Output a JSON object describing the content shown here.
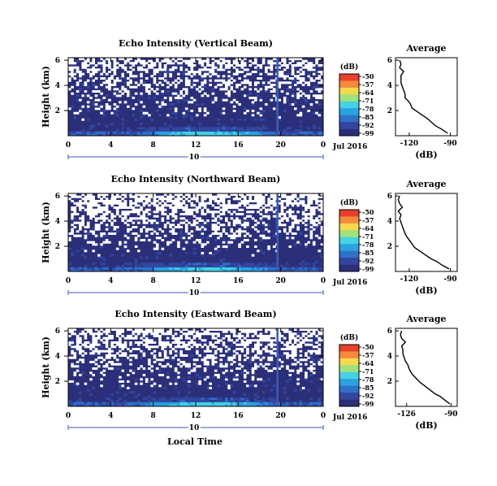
{
  "figure": {
    "xlabel": "Local Time",
    "date_label": "Jul 2016",
    "day_label": "10"
  },
  "chart_data": [
    {
      "type": "heatmap",
      "title": "Echo Intensity (Vertical Beam)",
      "ylabel": "Height (km)",
      "xlim": [
        0,
        24
      ],
      "ylim": [
        0,
        6.2
      ],
      "xticks": [
        "0",
        "4",
        "8",
        "12",
        "16",
        "20",
        "0"
      ],
      "yticks": [
        "2",
        "4",
        "6"
      ],
      "colorbar": {
        "unit": "(dB)",
        "ticks": [
          "-50",
          "-57",
          "-64",
          "-71",
          "-78",
          "-85",
          "-92",
          "-99"
        ]
      },
      "gap_density": 0.42,
      "spike_hour": 19.6,
      "profile": {
        "title": "Average",
        "xlabel": "(dB)",
        "xticks": [
          "-120",
          "-90"
        ],
        "xlim": [
          -130,
          -85
        ],
        "heights": [
          0.2,
          0.5,
          0.8,
          1.0,
          1.3,
          1.6,
          1.9,
          2.2,
          2.5,
          2.8,
          3.0,
          3.3,
          3.6,
          3.9,
          4.2,
          4.5,
          4.8,
          5.1,
          5.4,
          5.7,
          6.0
        ],
        "values": [
          -92,
          -96,
          -101,
          -103,
          -106,
          -110,
          -114,
          -118,
          -119,
          -121,
          -123,
          -123,
          -124,
          -125,
          -126,
          -126,
          -126,
          -124,
          -127,
          -126,
          -127
        ]
      }
    },
    {
      "type": "heatmap",
      "title": "Echo Intensity (Northward Beam)",
      "ylabel": "Height (km)",
      "xlim": [
        0,
        24
      ],
      "ylim": [
        0,
        6.2
      ],
      "xticks": [
        "0",
        "4",
        "8",
        "12",
        "16",
        "20",
        "0"
      ],
      "yticks": [
        "2",
        "4",
        "6"
      ],
      "colorbar": {
        "unit": "(dB)",
        "ticks": [
          "-50",
          "-57",
          "-64",
          "-71",
          "-78",
          "-85",
          "-92",
          "-99"
        ]
      },
      "gap_density": 0.55,
      "spike_hour": 19.6,
      "profile": {
        "title": "Average",
        "xlabel": "(dB)",
        "xticks": [
          "-120",
          "-90"
        ],
        "xlim": [
          -130,
          -85
        ],
        "heights": [
          0.2,
          0.5,
          0.8,
          1.0,
          1.3,
          1.6,
          1.9,
          2.2,
          2.5,
          2.8,
          3.0,
          3.3,
          3.6,
          3.9,
          4.2,
          4.5,
          4.8,
          5.1,
          5.4,
          5.7,
          6.0
        ],
        "values": [
          -91,
          -96,
          -100,
          -104,
          -108,
          -112,
          -116,
          -118,
          -120,
          -122,
          -123,
          -124,
          -125,
          -126,
          -127,
          -126,
          -128,
          -125,
          -127,
          -128,
          -127
        ]
      }
    },
    {
      "type": "heatmap",
      "title": "Echo Intensity (Eastward Beam)",
      "ylabel": "Height (km)",
      "xlim": [
        0,
        24
      ],
      "ylim": [
        0,
        6.2
      ],
      "xticks": [
        "0",
        "4",
        "8",
        "12",
        "16",
        "20",
        "0"
      ],
      "yticks": [
        "2",
        "4",
        "6"
      ],
      "colorbar": {
        "unit": "(dB)",
        "ticks": [
          "-50",
          "-57",
          "-64",
          "-71",
          "-78",
          "-85",
          "-92",
          "-99"
        ]
      },
      "gap_density": 0.5,
      "spike_hour": 19.6,
      "profile": {
        "title": "Average",
        "xlabel": "(dB)",
        "xticks": [
          "-126",
          "-90"
        ],
        "xlim": [
          -135,
          -85
        ],
        "heights": [
          0.2,
          0.5,
          0.8,
          1.0,
          1.3,
          1.6,
          1.9,
          2.2,
          2.5,
          2.8,
          3.0,
          3.3,
          3.6,
          3.9,
          4.2,
          4.5,
          4.8,
          5.1,
          5.4,
          5.7,
          6.0
        ],
        "values": [
          -91,
          -95,
          -99,
          -103,
          -107,
          -111,
          -115,
          -118,
          -121,
          -123,
          -124,
          -125,
          -127,
          -128,
          -129,
          -129,
          -130,
          -127,
          -130,
          -131,
          -130
        ]
      }
    }
  ]
}
